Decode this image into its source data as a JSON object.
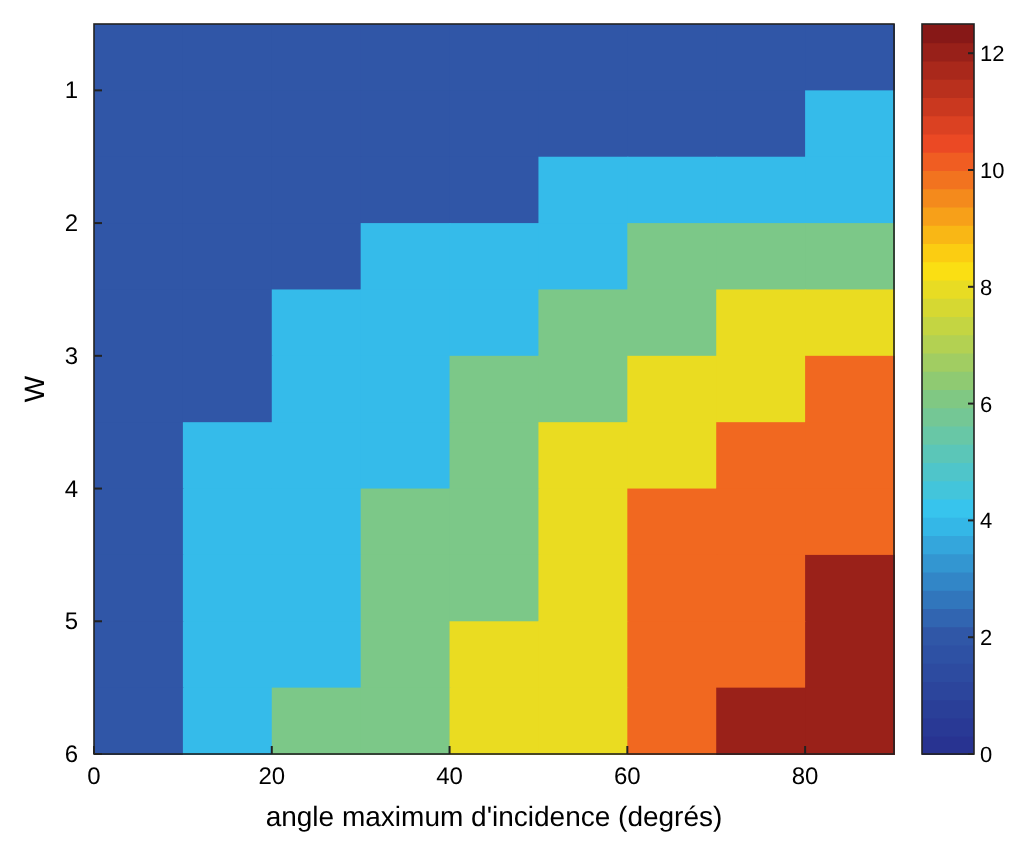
{
  "chart_data": {
    "type": "heatmap",
    "xlabel": "angle maximum d'incidence (degrés)",
    "ylabel": "W",
    "x": [
      5,
      15,
      25,
      35,
      45,
      55,
      65,
      75,
      85
    ],
    "xlim": [
      0,
      90
    ],
    "xticks": [
      0,
      20,
      40,
      60,
      80
    ],
    "ylim": [
      6,
      0.5
    ],
    "yticks": [
      1,
      2,
      3,
      4,
      5,
      6
    ],
    "cells": [
      [
        2,
        2,
        2,
        2,
        2,
        2,
        2,
        2,
        2
      ],
      [
        2,
        2,
        2,
        2,
        2,
        2,
        2,
        2,
        4
      ],
      [
        2,
        2,
        2,
        2,
        2,
        4,
        4,
        4,
        4
      ],
      [
        2,
        2,
        2,
        4,
        4,
        4,
        6,
        6,
        6
      ],
      [
        2,
        2,
        4,
        4,
        4,
        6,
        6,
        8,
        8
      ],
      [
        2,
        2,
        4,
        4,
        6,
        6,
        8,
        8,
        10
      ],
      [
        2,
        4,
        4,
        4,
        6,
        8,
        8,
        10,
        10
      ],
      [
        2,
        4,
        4,
        6,
        6,
        8,
        10,
        10,
        10
      ],
      [
        2,
        4,
        4,
        6,
        6,
        8,
        10,
        10,
        12
      ],
      [
        2,
        4,
        4,
        6,
        8,
        8,
        10,
        10,
        12
      ],
      [
        2,
        4,
        6,
        6,
        8,
        8,
        10,
        12,
        12
      ]
    ],
    "clim": [
      0,
      12.5
    ],
    "cticks": [
      0,
      2,
      4,
      6,
      8,
      10,
      12
    ]
  }
}
